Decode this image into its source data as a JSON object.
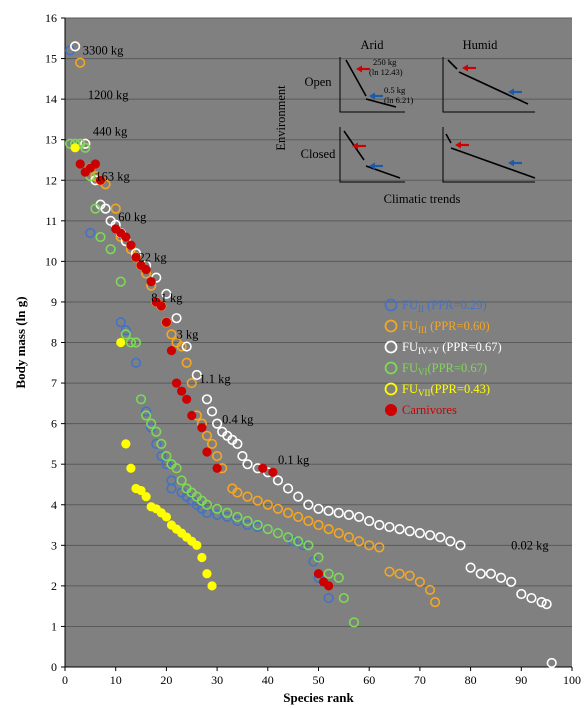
{
  "chart_data": {
    "type": "scatter",
    "xlabel": "Species rank",
    "ylabel": "Body mass (ln g)",
    "xlim": [
      0,
      100
    ],
    "ylim": [
      0,
      16
    ],
    "xticks": [
      "0",
      "10",
      "20",
      "30",
      "40",
      "50",
      "60",
      "70",
      "80",
      "90",
      "100"
    ],
    "yticks": [
      "0",
      "1",
      "2",
      "3",
      "4",
      "5",
      "6",
      "7",
      "8",
      "9",
      "10",
      "11",
      "12",
      "13",
      "14",
      "15",
      "16"
    ],
    "grid": "horizontal",
    "mass_labels": [
      {
        "text": "3300 kg",
        "x": 3.5,
        "y": 15.1
      },
      {
        "text": "1200 kg",
        "x": 4.5,
        "y": 14.0
      },
      {
        "text": "440 kg",
        "x": 5.5,
        "y": 13.1
      },
      {
        "text": "163 kg",
        "x": 6.0,
        "y": 12.0
      },
      {
        "text": "60 kg",
        "x": 10.5,
        "y": 11.0
      },
      {
        "text": "22 kg",
        "x": 14.5,
        "y": 10.0
      },
      {
        "text": "8.1 kg",
        "x": 17.0,
        "y": 9.0
      },
      {
        "text": "3 kg",
        "x": 22.0,
        "y": 8.1
      },
      {
        "text": "1.1 kg",
        "x": 26.5,
        "y": 7.0
      },
      {
        "text": "0.4 kg",
        "x": 31.0,
        "y": 6.0
      },
      {
        "text": "0.1 kg",
        "x": 42.0,
        "y": 5.0
      },
      {
        "text": "0.02 kg",
        "x": 88.0,
        "y": 2.9
      }
    ],
    "legend_position": "right-middle",
    "series": [
      {
        "key": "FU_II",
        "sub": "II",
        "name": "FU",
        "ppr": " (PPR=0.29)",
        "color": "#4472c4",
        "x": [
          1,
          5,
          11,
          12,
          14,
          15,
          16,
          17,
          18,
          19,
          20,
          21,
          21,
          23,
          24,
          25,
          26,
          27,
          28,
          30,
          32,
          34,
          36,
          38,
          40,
          42,
          44,
          45,
          47,
          49,
          50,
          52
        ],
        "y": [
          15.2,
          10.7,
          8.5,
          8.3,
          7.5,
          6.6,
          6.3,
          5.9,
          5.5,
          5.2,
          5.0,
          4.6,
          4.4,
          4.3,
          4.2,
          4.1,
          4.0,
          3.9,
          3.8,
          3.75,
          3.7,
          3.6,
          3.5,
          3.45,
          3.4,
          3.3,
          3.2,
          3.1,
          3.0,
          2.6,
          2.2,
          1.7
        ]
      },
      {
        "key": "FU_III",
        "sub": "III",
        "name": "FU",
        "ppr": " (PPR=0.60)",
        "color": "#f5a623",
        "x": [
          2,
          3,
          4,
          5,
          6,
          7,
          8,
          10,
          11,
          12,
          13,
          14,
          15,
          16,
          17,
          18,
          19,
          20,
          21,
          22,
          23,
          24,
          25,
          26,
          27,
          28,
          29,
          30,
          31,
          33,
          34,
          36,
          38,
          40,
          42,
          44,
          46,
          48,
          50,
          52,
          54,
          56,
          58,
          60,
          62,
          64,
          66,
          68,
          70,
          72,
          73
        ],
        "y": [
          15.3,
          14.9,
          12.9,
          12.3,
          12.1,
          12.0,
          11.9,
          11.3,
          10.6,
          10.5,
          10.3,
          10.1,
          9.9,
          9.7,
          9.4,
          9.0,
          8.9,
          8.5,
          8.2,
          8.0,
          7.9,
          7.5,
          7.0,
          6.2,
          6.0,
          5.7,
          5.5,
          5.2,
          4.9,
          4.4,
          4.3,
          4.2,
          4.1,
          4.0,
          3.9,
          3.8,
          3.7,
          3.6,
          3.5,
          3.4,
          3.3,
          3.2,
          3.1,
          3.0,
          2.95,
          2.35,
          2.3,
          2.25,
          2.1,
          1.9,
          1.6
        ]
      },
      {
        "key": "FU_IVV",
        "sub": "IV+V",
        "name": "FU",
        "ppr": " (PPR=0.67)",
        "color": "#ffffff",
        "x": [
          2,
          4,
          6,
          7,
          8,
          9,
          10,
          11,
          12,
          14,
          16,
          18,
          20,
          22,
          24,
          26,
          28,
          29,
          30,
          31,
          32,
          33,
          34,
          35,
          36,
          38,
          40,
          42,
          44,
          46,
          48,
          50,
          52,
          54,
          56,
          58,
          60,
          62,
          64,
          66,
          68,
          70,
          72,
          74,
          76,
          78,
          80,
          82,
          84,
          86,
          88,
          90,
          92,
          94,
          95,
          96
        ],
        "y": [
          15.3,
          12.9,
          12.0,
          11.4,
          11.3,
          11.0,
          10.9,
          10.7,
          10.5,
          10.2,
          9.9,
          9.6,
          9.2,
          8.6,
          7.9,
          7.2,
          6.6,
          6.3,
          6.0,
          5.8,
          5.7,
          5.6,
          5.5,
          5.2,
          5.0,
          4.9,
          4.8,
          4.6,
          4.4,
          4.2,
          4.0,
          3.9,
          3.85,
          3.8,
          3.75,
          3.7,
          3.6,
          3.5,
          3.45,
          3.4,
          3.35,
          3.3,
          3.25,
          3.2,
          3.1,
          3.0,
          2.45,
          2.3,
          2.3,
          2.2,
          2.1,
          1.8,
          1.7,
          1.6,
          1.55,
          0.1
        ]
      },
      {
        "key": "FU_VI",
        "sub": "VI",
        "name": "FU",
        "ppr": "(PPR=0.67)",
        "color": "#7ed957",
        "x": [
          1,
          2,
          3,
          4,
          5,
          6,
          7,
          9,
          11,
          12,
          13,
          14,
          15,
          16,
          17,
          18,
          19,
          20,
          21,
          22,
          23,
          24,
          25,
          26,
          27,
          28,
          30,
          32,
          34,
          36,
          38,
          40,
          42,
          44,
          46,
          48,
          50,
          52,
          54,
          55,
          57
        ],
        "y": [
          12.9,
          12.9,
          12.9,
          12.8,
          12.1,
          11.3,
          10.6,
          10.3,
          9.5,
          8.2,
          8.0,
          8.0,
          6.6,
          6.2,
          6.0,
          5.8,
          5.5,
          5.2,
          5.0,
          4.9,
          4.6,
          4.4,
          4.3,
          4.2,
          4.1,
          4.0,
          3.9,
          3.8,
          3.7,
          3.6,
          3.5,
          3.4,
          3.3,
          3.2,
          3.1,
          3.0,
          2.7,
          2.3,
          2.2,
          1.7,
          1.1
        ]
      },
      {
        "key": "FU_VII",
        "sub": "VII",
        "name": "FU",
        "ppr": "(PPR=0.43)",
        "color": "#ffff00",
        "x": [
          2,
          11,
          12,
          13,
          14,
          15,
          16,
          17,
          18,
          19,
          20,
          21,
          22,
          23,
          24,
          25,
          26,
          27,
          28,
          29
        ],
        "y": [
          12.8,
          8.0,
          5.5,
          4.9,
          4.4,
          4.35,
          4.2,
          3.95,
          3.9,
          3.8,
          3.7,
          3.5,
          3.4,
          3.3,
          3.2,
          3.1,
          3.0,
          2.7,
          2.3,
          2.0
        ]
      },
      {
        "key": "Carnivores",
        "sub": "",
        "name": "Carnivores",
        "ppr": "",
        "color": "#cc0000",
        "x": [
          3,
          4,
          5,
          6,
          7,
          10,
          11,
          12,
          13,
          14,
          15,
          16,
          17,
          18,
          19,
          20,
          21,
          22,
          23,
          24,
          25,
          27,
          28,
          30,
          39,
          41,
          50,
          51,
          52
        ],
        "y": [
          12.4,
          12.2,
          12.3,
          12.4,
          12.0,
          10.8,
          10.7,
          10.6,
          10.4,
          10.1,
          9.9,
          9.8,
          9.5,
          9.0,
          8.9,
          8.5,
          7.8,
          7.0,
          6.8,
          6.6,
          6.2,
          5.9,
          5.3,
          4.9,
          4.9,
          4.8,
          2.3,
          2.1,
          2.0
        ]
      }
    ]
  },
  "inset": {
    "col_arid": "Arid",
    "col_humid": "Humid",
    "row_open": "Open",
    "row_closed": "Closed",
    "y_title": "Environment",
    "x_title": "Climatic trends",
    "note_top1": "250 kg",
    "note_top2": "(ln 12.43)",
    "note_bot1": "0.5 kg",
    "note_bot2": "(ln 6.21)"
  }
}
